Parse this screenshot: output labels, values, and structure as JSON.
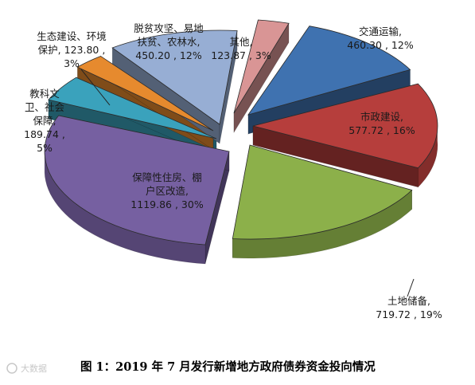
{
  "chart_data": {
    "type": "pie",
    "title": "图 1：2019 年 7 月发行新增地方政府债券资金投向情况",
    "slices": [
      {
        "name": "交通运输",
        "value": 460.3,
        "percent": "12%",
        "color": "#3F72B0"
      },
      {
        "name": "市政建设",
        "value": 577.72,
        "percent": "16%",
        "color": "#B63E3C"
      },
      {
        "name": "土地储备",
        "value": 719.72,
        "percent": "19%",
        "color": "#8CB04A"
      },
      {
        "name": "保障性住房、棚户区改造",
        "value": 1119.86,
        "percent": "30%",
        "color": "#7660A1"
      },
      {
        "name": "教科文卫、社会保障",
        "value": 189.74,
        "percent": "5%",
        "color": "#3AA2BC"
      },
      {
        "name": "生态建设、环境保护",
        "value": 123.8,
        "percent": "3%",
        "color": "#E68A2E"
      },
      {
        "name": "脱贫攻坚、易地扶贫、农林水",
        "value": 450.2,
        "percent": "12%",
        "color": "#97AED4"
      },
      {
        "name": "其他",
        "value": 123.87,
        "percent": "3%",
        "color": "#D99595"
      }
    ]
  },
  "labels": [
    {
      "lines": [
        "交通运输,",
        "460.30 , 12%"
      ]
    },
    {
      "lines": [
        "市政建设,",
        "577.72 , 16%"
      ]
    },
    {
      "lines": [
        "土地储备,",
        "719.72 , 19%"
      ]
    },
    {
      "lines": [
        "保障性住房、棚",
        "户区改造,",
        "1119.86 , 30%"
      ]
    },
    {
      "lines": [
        "教科文",
        "卫、社会",
        "保障,",
        "189.74 ,",
        "5%"
      ]
    },
    {
      "lines": [
        "生态建设、环境",
        "保护, 123.80 ,",
        "3%"
      ]
    },
    {
      "lines": [
        "脱贫攻坚、易地",
        "扶贫、农林水,",
        "450.20 , 12%"
      ]
    },
    {
      "lines": [
        "其他,",
        "123.87 , 3%"
      ]
    }
  ],
  "caption": "图 1：2019 年 7 月发行新增地方政府债券资金投向情况",
  "watermark": "大数据"
}
